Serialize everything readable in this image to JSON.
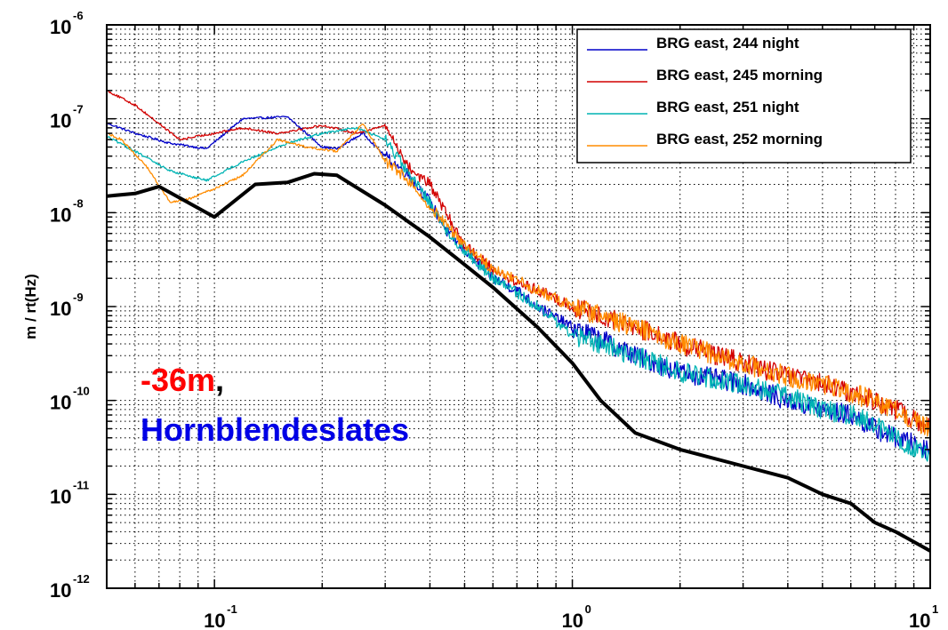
{
  "chart_data": {
    "type": "line",
    "title": "",
    "xlabel": "",
    "ylabel": "m / rt(Hz)",
    "xscale": "log",
    "yscale": "log",
    "xlim": [
      0.05,
      10
    ],
    "ylim": [
      1e-12,
      1e-06
    ],
    "grid": true,
    "legend_position": "top-right",
    "x_ticks": [
      {
        "value": 0.1,
        "base": "10",
        "exp": "-1"
      },
      {
        "value": 1,
        "base": "10",
        "exp": "0"
      },
      {
        "value": 10,
        "base": "10",
        "exp": "1"
      }
    ],
    "y_ticks": [
      {
        "value": 1e-06,
        "base": "10",
        "exp": "-6"
      },
      {
        "value": 1e-07,
        "base": "10",
        "exp": "-7"
      },
      {
        "value": 1e-08,
        "base": "10",
        "exp": "-8"
      },
      {
        "value": 1e-09,
        "base": "10",
        "exp": "-9"
      },
      {
        "value": 1e-10,
        "base": "10",
        "exp": "-10"
      },
      {
        "value": 1e-11,
        "base": "10",
        "exp": "-11"
      },
      {
        "value": 1e-12,
        "base": "10",
        "exp": "-12"
      }
    ],
    "series": [
      {
        "name": "BRG east, 244 night",
        "color": "#0000c8",
        "noisy": true,
        "x": [
          0.05,
          0.06,
          0.075,
          0.095,
          0.12,
          0.16,
          0.2,
          0.22,
          0.26,
          0.3,
          0.35,
          0.4,
          0.45,
          0.5,
          0.6,
          0.7,
          0.8,
          1.0,
          1.2,
          1.5,
          2.0,
          3.0,
          4.0,
          5.0,
          6.0,
          7.0,
          8.0,
          10.0
        ],
        "y": [
          9e-08,
          7e-08,
          5.5e-08,
          4.8e-08,
          1e-07,
          1.05e-07,
          5e-08,
          4.8e-08,
          7e-08,
          4e-08,
          2.5e-08,
          1.3e-08,
          6e-09,
          4e-09,
          2e-09,
          1.5e-09,
          1e-09,
          6e-10,
          4.5e-10,
          3e-10,
          2e-10,
          1.5e-10,
          1e-10,
          8e-11,
          7e-11,
          5e-11,
          4e-11,
          3e-11
        ]
      },
      {
        "name": "BRG east, 245 morning",
        "color": "#d20000",
        "noisy": true,
        "x": [
          0.05,
          0.06,
          0.08,
          0.1,
          0.12,
          0.15,
          0.2,
          0.25,
          0.3,
          0.35,
          0.4,
          0.45,
          0.5,
          0.6,
          0.7,
          0.8,
          1.0,
          1.2,
          1.5,
          2.0,
          3.0,
          4.0,
          5.0,
          6.0,
          7.0,
          8.0,
          10.0
        ],
        "y": [
          2e-07,
          1.4e-07,
          6e-08,
          7e-08,
          8e-08,
          7e-08,
          8.5e-08,
          7e-08,
          8.5e-08,
          3e-08,
          2e-08,
          9e-09,
          4.5e-09,
          2.5e-09,
          1.8e-09,
          1.5e-09,
          1e-09,
          8e-10,
          6e-10,
          4e-10,
          2.5e-10,
          1.8e-10,
          1.5e-10,
          1.2e-10,
          1e-10,
          8e-11,
          5e-11
        ]
      },
      {
        "name": "BRG east, 251 night",
        "color": "#00b4b4",
        "noisy": true,
        "x": [
          0.05,
          0.06,
          0.075,
          0.095,
          0.12,
          0.16,
          0.2,
          0.25,
          0.3,
          0.35,
          0.4,
          0.45,
          0.5,
          0.6,
          0.7,
          0.8,
          1.0,
          1.2,
          1.5,
          2.0,
          3.0,
          4.0,
          5.0,
          6.0,
          7.0,
          8.0,
          10.0
        ],
        "y": [
          6.5e-08,
          4.5e-08,
          2.8e-08,
          2.2e-08,
          3.5e-08,
          5.5e-08,
          7e-08,
          8e-08,
          6e-08,
          2.5e-08,
          1.3e-08,
          6e-09,
          4e-09,
          2e-09,
          1.4e-09,
          1e-09,
          5e-10,
          4e-10,
          3e-10,
          2e-10,
          1.5e-10,
          1.1e-10,
          8e-11,
          7e-11,
          5.5e-11,
          4e-11,
          2.5e-11
        ]
      },
      {
        "name": "BRG east, 252 morning",
        "color": "#ff8c00",
        "noisy": true,
        "x": [
          0.05,
          0.055,
          0.065,
          0.075,
          0.085,
          0.1,
          0.12,
          0.15,
          0.18,
          0.22,
          0.26,
          0.3,
          0.35,
          0.4,
          0.45,
          0.5,
          0.6,
          0.7,
          0.8,
          1.0,
          1.2,
          1.5,
          2.0,
          3.0,
          4.0,
          5.0,
          6.0,
          7.0,
          8.0,
          10.0
        ],
        "y": [
          7e-08,
          6e-08,
          3e-08,
          1.3e-08,
          1.4e-08,
          1.8e-08,
          2.5e-08,
          6e-08,
          5e-08,
          4.5e-08,
          9e-08,
          3.5e-08,
          2.2e-08,
          1.2e-08,
          7e-09,
          4.5e-09,
          2.5e-09,
          1.9e-09,
          1.5e-09,
          1e-09,
          8e-10,
          6e-10,
          4e-10,
          2.5e-10,
          1.8e-10,
          1.5e-10,
          1.2e-10,
          1e-10,
          8e-11,
          5e-11
        ]
      },
      {
        "name": "",
        "color": "#000000",
        "noisy": false,
        "x": [
          0.05,
          0.06,
          0.07,
          0.1,
          0.13,
          0.16,
          0.19,
          0.22,
          0.3,
          0.4,
          0.5,
          0.6,
          0.8,
          1.0,
          1.2,
          1.5,
          2.0,
          3.0,
          4.0,
          5.0,
          6.0,
          7.0,
          8.0,
          10.0
        ],
        "y": [
          1.5e-08,
          1.6e-08,
          1.9e-08,
          9e-09,
          2e-08,
          2.1e-08,
          2.6e-08,
          2.5e-08,
          1.2e-08,
          5.5e-09,
          2.8e-09,
          1.6e-09,
          6e-10,
          2.5e-10,
          1e-10,
          4.5e-11,
          3e-11,
          2e-11,
          1.5e-11,
          1e-11,
          8e-12,
          5e-12,
          4e-12,
          2.5e-12
        ]
      }
    ],
    "annotations": [
      {
        "parts": [
          {
            "text": "-36m",
            "color": "#ff0000"
          },
          {
            "text": ",",
            "color": "#000000"
          }
        ]
      },
      {
        "parts": [
          {
            "text": "Hornblendeslates",
            "color": "#0000e6"
          }
        ]
      }
    ]
  }
}
